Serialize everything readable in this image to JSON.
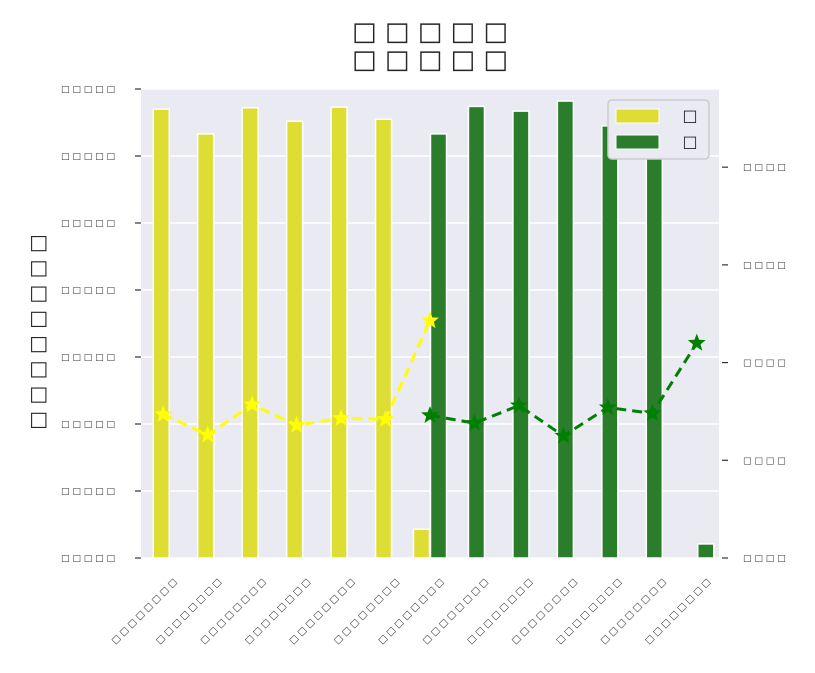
{
  "chart_data": {
    "type": "bar",
    "title_lines": [
      "□ □ □ □ □",
      "□ □ □ □ □"
    ],
    "ylabel": "□ □ □ □ □ □ □ □",
    "categories": [
      "□ □ □ □ □ □ □ □",
      "□ □ □ □ □ □ □ □",
      "□ □ □ □ □ □ □ □",
      "□ □ □ □ □ □ □ □",
      "□ □ □ □ □ □ □ □",
      "□ □ □ □ □ □ □ □",
      "□ □ □ □ □ □ □ □",
      "□ □ □ □ □ □ □ □",
      "□ □ □ □ □ □ □ □",
      "□ □ □ □ □ □ □ □",
      "□ □ □ □ □ □ □ □",
      "□ □ □ □ □ □ □ □",
      "□ □ □ □ □ □ □ □"
    ],
    "y_left": {
      "ylim": [
        0,
        7
      ],
      "ticks": [
        0,
        1,
        2,
        3,
        4,
        5,
        6,
        7
      ],
      "tick_labels": [
        "□ □ □ □ □",
        "□ □ □ □ □",
        "□ □ □ □ □",
        "□ □ □ □ □",
        "□ □ □ □ □",
        "□ □ □ □ □",
        "□ □ □ □ □",
        "□ □ □ □ □"
      ]
    },
    "y_right": {
      "ylim": [
        0,
        4.8
      ],
      "ticks": [
        0,
        1,
        2,
        3,
        4
      ],
      "tick_labels": [
        "□ □ □ □",
        "□ □ □ □",
        "□ □ □ □",
        "□ □ □ □",
        "□ □ □ □"
      ]
    },
    "series": [
      {
        "name": "□",
        "type": "bar",
        "axis": "left",
        "color": "#dddd33",
        "values": [
          6.7,
          6.33,
          6.72,
          6.52,
          6.73,
          6.55,
          0.43,
          null,
          null,
          null,
          null,
          null,
          null
        ]
      },
      {
        "name": "□",
        "type": "bar",
        "axis": "left",
        "color": "#2a7d2a",
        "values": [
          null,
          null,
          null,
          null,
          null,
          null,
          6.33,
          6.74,
          6.67,
          6.82,
          6.45,
          6.6,
          0.21
        ]
      },
      {
        "type": "line",
        "axis": "right",
        "color": "#ffff00",
        "style": "dashed",
        "marker": "star",
        "values": [
          1.47,
          1.26,
          1.57,
          1.36,
          1.43,
          1.42,
          2.43,
          null,
          null,
          null,
          null,
          null,
          null
        ]
      },
      {
        "type": "line",
        "axis": "right",
        "color": "#008000",
        "style": "dashed",
        "marker": "star",
        "values": [
          null,
          null,
          null,
          null,
          null,
          null,
          1.46,
          1.38,
          1.56,
          1.25,
          1.54,
          1.48,
          2.2
        ]
      }
    ],
    "legend": {
      "position": "top-right",
      "entries": [
        0,
        1
      ]
    },
    "grid": true,
    "background": "#eaeaf2"
  }
}
